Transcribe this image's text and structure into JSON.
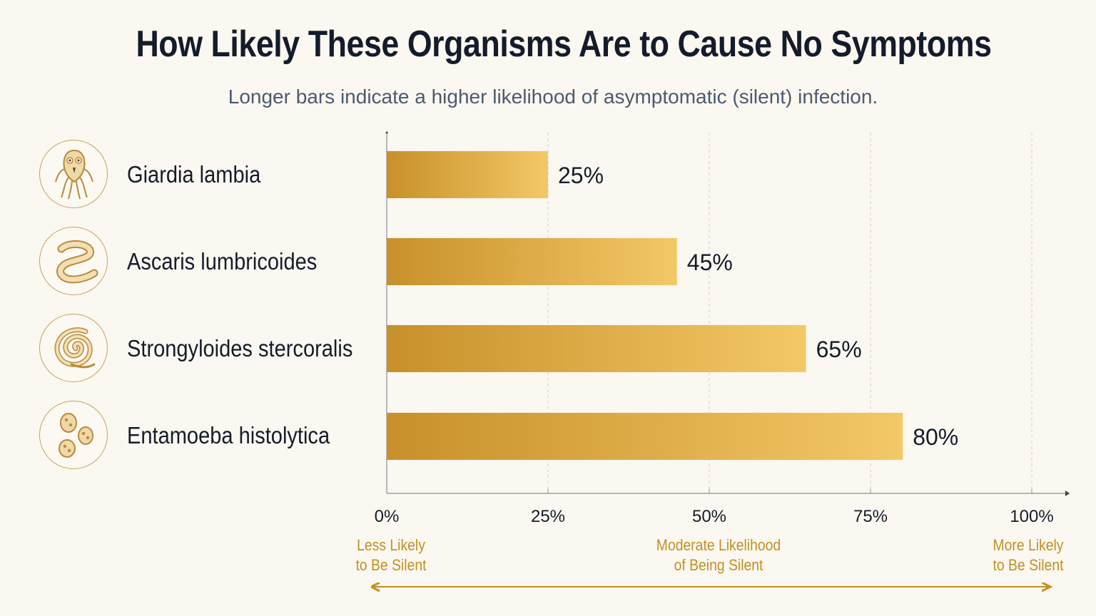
{
  "header": {
    "title": "How Likely These Organisms Are to Cause No Symptoms",
    "subtitle": "Longer bars indicate a higher likelihood of asymptomatic (silent) infection."
  },
  "rows": [
    {
      "label": "Giardia lambia",
      "icon": "giardia-icon"
    },
    {
      "label": "Ascaris lumbricoides",
      "icon": "roundworm-icon"
    },
    {
      "label": "Strongyloides stercoralis",
      "icon": "coiled-worm-icon"
    },
    {
      "label": "Entamoeba histolytica",
      "icon": "cysts-icon"
    }
  ],
  "scale_notes": {
    "left_line1": "Less Likely",
    "left_line2": "to Be Silent",
    "mid_line1": "Moderate Likelihood",
    "mid_line2": "of Being Silent",
    "right_line1": "More Likely",
    "right_line2": "to Be Silent"
  },
  "colors": {
    "bar_start": "#c8902a",
    "bar_end": "#f3c866",
    "accent": "#c48f22",
    "text": "#141c2b"
  },
  "chart_data": {
    "type": "bar",
    "orientation": "horizontal",
    "categories": [
      "Giardia lambia",
      "Ascaris lumbricoides",
      "Strongyloides stercoralis",
      "Entamoeba histolytica"
    ],
    "values": [
      25,
      45,
      65,
      80
    ],
    "value_labels": [
      "25%",
      "45%",
      "65%",
      "80%"
    ],
    "xlim": [
      0,
      100
    ],
    "x_ticks": [
      "0%",
      "25%",
      "50%",
      "75%",
      "100%"
    ],
    "grid": "vertical dashed at tick values",
    "legend": "none"
  }
}
